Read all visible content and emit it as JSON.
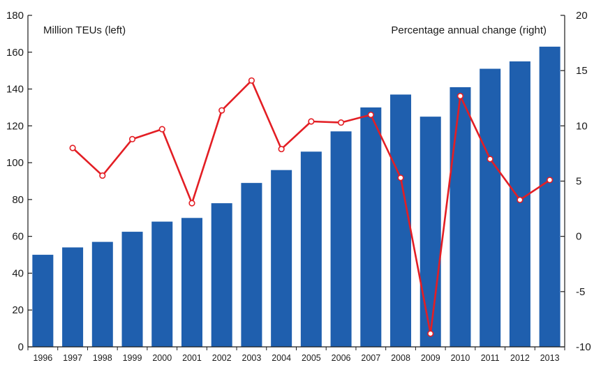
{
  "chart_data": {
    "type": "bar+line",
    "categories": [
      "1996",
      "1997",
      "1998",
      "1999",
      "2000",
      "2001",
      "2002",
      "2003",
      "2004",
      "2005",
      "2006",
      "2007",
      "2008",
      "2009",
      "2010",
      "2011",
      "2012",
      "2013"
    ],
    "series": [
      {
        "name": "Million TEUs (left)",
        "type": "bar",
        "axis": "left",
        "color": "#1f5fae",
        "values": [
          50,
          54,
          57,
          62.5,
          68,
          70,
          78,
          89,
          96,
          106,
          117,
          130,
          137,
          125,
          141,
          151,
          155,
          163
        ]
      },
      {
        "name": "Percentage annual change (right)",
        "type": "line",
        "axis": "right",
        "color": "#e31e24",
        "values": [
          null,
          8,
          5.5,
          8.8,
          9.7,
          3,
          11.4,
          14.1,
          7.9,
          10.4,
          10.3,
          11,
          5.3,
          -8.8,
          12.7,
          7,
          3.3,
          5.1
        ]
      }
    ],
    "left_axis": {
      "label": "Million TEUs (left)",
      "ylim": [
        0,
        180
      ],
      "ticks": [
        0,
        20,
        40,
        60,
        80,
        100,
        120,
        140,
        160,
        180
      ]
    },
    "right_axis": {
      "label": "Percentage annual change (right)",
      "ylim": [
        -10,
        20
      ],
      "ticks": [
        "-10",
        "-5",
        "0",
        "5",
        "10",
        "15",
        "20"
      ]
    },
    "grid": false,
    "legend": "none"
  }
}
